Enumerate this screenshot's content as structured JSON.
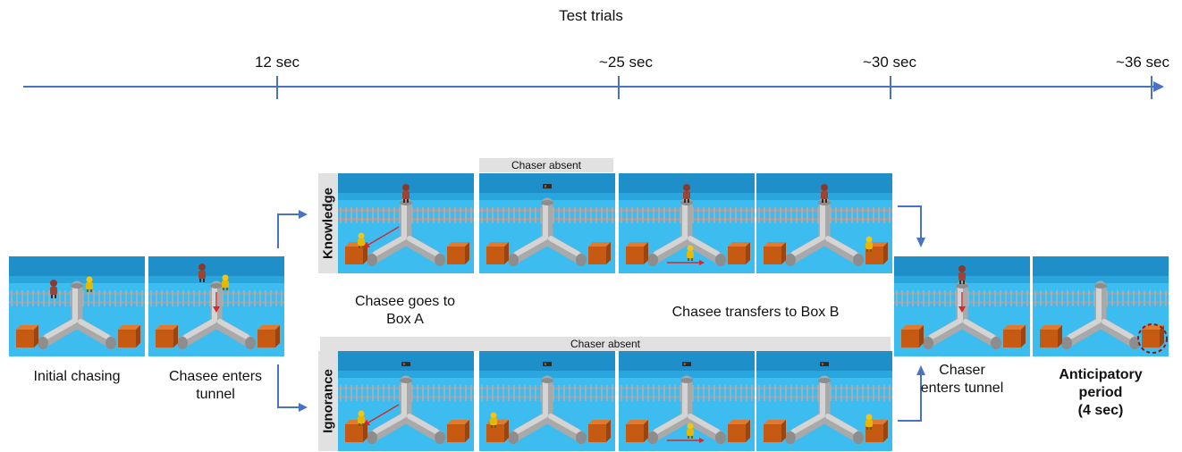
{
  "title": "Test trials",
  "timeline": {
    "ticks": [
      {
        "label": "12 sec"
      },
      {
        "label": "~25 sec"
      },
      {
        "label": "~30 sec"
      },
      {
        "label": "~36 sec"
      }
    ]
  },
  "conditions": {
    "knowledge": "Knowledge",
    "ignorance": "Ignorance"
  },
  "banners": {
    "knowledge_absent": "Chaser absent",
    "ignorance_absent": "Chaser absent"
  },
  "captions": {
    "initial": "Initial chasing",
    "chasee_tunnel_1": "Chasee enters",
    "chasee_tunnel_2": "tunnel",
    "box_a_1": "Chasee goes to",
    "box_a_2": "Box A",
    "box_b": "Chasee transfers to Box B",
    "chaser_tunnel_1": "Chaser",
    "chaser_tunnel_2": "enters tunnel",
    "anticip_1": "Anticipatory",
    "anticip_2": "period",
    "anticip_3": "(4 sec)"
  },
  "colors": {
    "sky": "#1e8fc9",
    "floor": "#3dbcf0",
    "pipe": "#b8b8b8",
    "box": "#d2691e",
    "arrow": "#4a72c4",
    "highlight": "#8b1a1a"
  }
}
